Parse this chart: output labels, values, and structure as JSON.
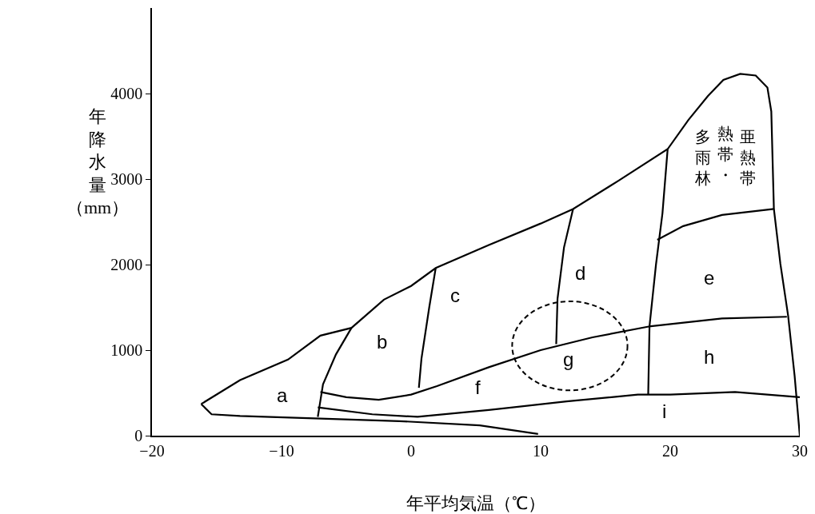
{
  "chart_data": {
    "type": "line",
    "xlabel": "年平均気温（℃）",
    "ylabel": "年降水量（mm）",
    "xlim": [
      -20,
      30
    ],
    "ylim": [
      0,
      5000
    ],
    "xticks": [
      {
        "value": -20,
        "label": "−20"
      },
      {
        "value": -10,
        "label": "−10"
      },
      0,
      10,
      20,
      30
    ],
    "yticks": [
      0,
      1000,
      2000,
      3000,
      4000
    ],
    "marker": "none",
    "line_style": "solid",
    "series": [
      {
        "color": "#000000",
        "x": [
          -16.2,
          -13.2,
          -9.5,
          -7,
          -4.6,
          -2.1,
          0,
          1.9,
          6,
          10,
          12.5,
          16,
          19.8,
          21.4,
          22.9,
          24.1,
          25.4,
          26.6,
          27.5,
          27.8,
          28,
          28.5,
          29.1,
          29.6,
          30
        ],
        "values": [
          370,
          650,
          890,
          1170,
          1260,
          1590,
          1750,
          1960,
          2230,
          2480,
          2650,
          2980,
          3350,
          3690,
          3970,
          4160,
          4230,
          4210,
          4070,
          3790,
          2650,
          2010,
          1400,
          700,
          0
        ]
      },
      {
        "color": "#000000",
        "x": [
          -16.2,
          -15.4,
          -13.2,
          -7,
          -0.9,
          5.3,
          9.8
        ],
        "values": [
          370,
          250,
          230,
          200,
          170,
          120,
          20
        ]
      },
      {
        "color": "#000000",
        "x": [
          -4.6,
          -5.8,
          -6.8,
          -7.2
        ],
        "values": [
          1260,
          950,
          600,
          220
        ]
      },
      {
        "color": "#000000",
        "x": [
          1.9,
          1.4,
          0.8,
          0.6
        ],
        "values": [
          1960,
          1500,
          900,
          560
        ]
      },
      {
        "color": "#000000",
        "x": [
          -7,
          -5,
          -2.5,
          0,
          2,
          6,
          10,
          14,
          18.5,
          24,
          29
        ],
        "values": [
          510,
          450,
          420,
          480,
          580,
          800,
          1000,
          1150,
          1280,
          1370,
          1390
        ]
      },
      {
        "color": "#000000",
        "x": [
          12.5,
          11.8,
          11.3,
          11.2
        ],
        "values": [
          2650,
          2200,
          1600,
          1070
        ]
      },
      {
        "color": "#000000",
        "x": [
          19.8,
          19.4,
          18.9,
          18.4,
          18.3
        ],
        "values": [
          3350,
          2600,
          2000,
          1280,
          480
        ]
      },
      {
        "color": "#000000",
        "x": [
          19,
          21,
          24,
          28
        ],
        "values": [
          2290,
          2450,
          2580,
          2650
        ]
      },
      {
        "color": "#000000",
        "x": [
          -7.2,
          -3,
          0.5,
          6,
          12,
          17.5,
          20,
          25,
          30
        ],
        "values": [
          330,
          250,
          220,
          300,
          400,
          480,
          480,
          510,
          450
        ]
      }
    ],
    "annotations": [
      "a",
      "b",
      "c",
      "d",
      "e",
      "f",
      "g",
      "h",
      "i",
      "熱帯・",
      "亜熱帯",
      "多雨林"
    ]
  }
}
